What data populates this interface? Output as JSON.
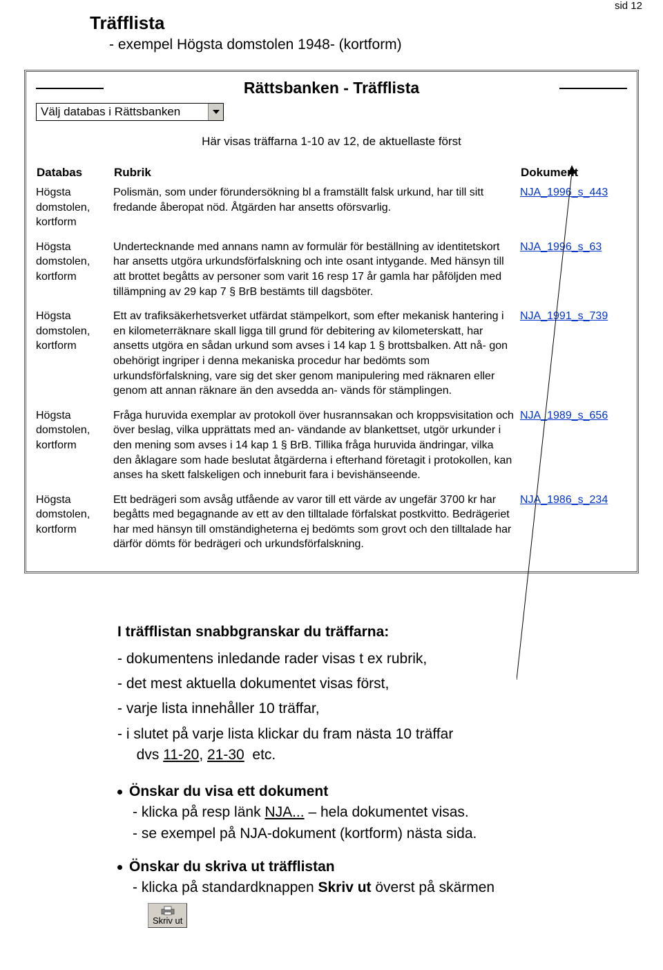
{
  "page_number_label": "sid  12",
  "title": "Träfflista",
  "subtitle": "- exempel Högsta domstolen 1948-  (kortform)",
  "panel": {
    "heading": "Rättsbanken - Träfflista",
    "db_select": "Välj databas i Rättsbanken",
    "count_line": "Här visas träffarna 1-10 av 12, de aktuellaste först",
    "cols": {
      "databas": "Databas",
      "rubrik": "Rubrik",
      "dokument": "Dokument"
    },
    "rows": [
      {
        "databas": "Högsta domstolen, kortform",
        "rubrik": "Polismän, som under förundersökning bl a framställt falsk urkund, har till sitt fredande åberopat nöd. Åtgärden har ansetts oförsvarlig.",
        "dokument": "NJA_1996_s_443"
      },
      {
        "databas": "Högsta domstolen, kortform",
        "rubrik": "Undertecknande med annans namn av formulär för beställning av identitetskort har ansetts utgöra urkundsförfalskning och inte osant intygande. Med hänsyn till att brottet begåtts av personer som varit 16 resp 17 år gamla har påföljden med tillämpning av 29 kap 7 § BrB bestämts till dagsböter.",
        "dokument": "NJA_1996_s_63"
      },
      {
        "databas": "Högsta domstolen, kortform",
        "rubrik": "Ett av trafiksäkerhetsverket utfärdat stämpelkort, som efter mekanisk hantering i en kilometerräknare skall ligga till grund för debitering av kilometerskatt, har ansetts utgöra en sådan urkund som avses i 14 kap 1 § brottsbalken. Att nå- gon obehörigt ingriper i denna mekaniska procedur har bedömts som urkundsförfalskning, vare sig det sker genom manipulering med räknaren eller genom att annan räknare än den avsedda an- vänds för stämplingen.",
        "dokument": "NJA_1991_s_739"
      },
      {
        "databas": "Högsta domstolen, kortform",
        "rubrik": "Fråga huruvida exemplar av protokoll över husrannsakan och kroppsvisitation och över beslag, vilka upprättats med an- vändande av blankettset, utgör urkunder i den mening som avses i 14 kap 1 § BrB. Tillika fråga huruvida ändringar, vilka den åklagare som hade beslutat åtgärderna i efterhand företagit i protokollen, kan anses ha skett falskeligen och inneburit fara i bevishänseende.",
        "dokument": "NJA_1989_s_656"
      },
      {
        "databas": "Högsta domstolen, kortform",
        "rubrik": "Ett bedrägeri som avsåg utfående av varor till ett värde av ungefär 3700 kr har begåtts med begagnande av ett av den tilltalade förfalskat postkvitto. Bedrägeriet har med hänsyn till omständigheterna ej bedömts som grovt och den tilltalade har därför dömts för bedrägeri och urkundsförfalskning.",
        "dokument": "NJA_1986_s_234"
      }
    ]
  },
  "lower": {
    "intro_heading": "I träfflistan snabbgranskar du träffarna:",
    "dash_items": [
      "dokumentens inledande rader visas t ex rubrik,",
      "det mest aktuella dokumentet visas först,",
      "varje lista innehåller 10 träffar,"
    ],
    "dash_last_prefix": "i slutet på varje lista klickar du fram nästa 10 träffar\n  dvs ",
    "link_1120": "11-20",
    "sep": ", ",
    "link_2130": "21-30",
    "dash_last_suffix": "  etc.",
    "b1_head": "Önskar du visa ett dokument",
    "b1_l1a": "- klicka på resp länk  ",
    "b1_link": "NJA...",
    "b1_l1b": " – hela dokumentet visas.",
    "b1_l2": "- se exempel på NJA-dokument (kortform) nästa sida.",
    "b2_head": "Önskar du skriva ut träfflistan",
    "b2_l1a": "-  klicka på standardknappen ",
    "b2_bold": "Skriv ut",
    "b2_l1b": " överst på skärmen",
    "print_label": "Skriv ut"
  },
  "colors": {
    "link": "#0033cc",
    "button_bg": "#d4d0c8"
  }
}
